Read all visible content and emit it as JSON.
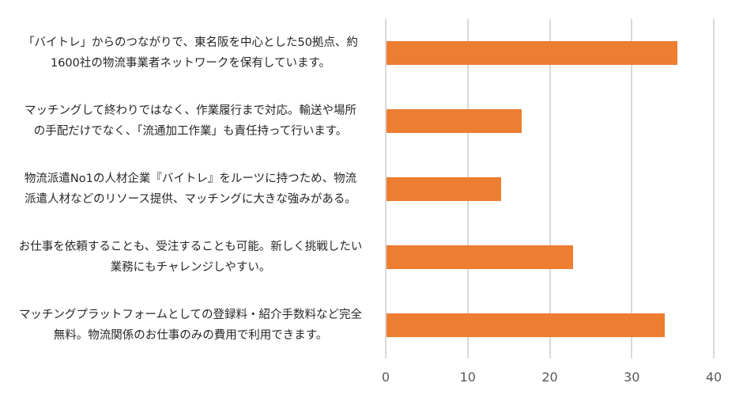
{
  "chart_data": {
    "type": "bar",
    "orientation": "horizontal",
    "title": "",
    "xlabel": "",
    "ylabel": "",
    "xlim": [
      0,
      40
    ],
    "xticks": [
      0,
      10,
      20,
      30,
      40
    ],
    "grid": true,
    "legend": null,
    "bar_color": "#ed7d31",
    "categories": [
      "「バイトレ」からのつながりで、東名阪を中心とした50拠点、約1600社の物流事業者ネットワークを保有しています。",
      "マッチングして終わりではなく、作業履行まで対応。輸送や場所の手配だけでなく、「流通加工作業」も責任持って行います。",
      "物流派遣No1の人材企業『バイトレ』をルーツに持つため、物流派遣人材などのリソース提供、マッチングに大きな強みがある。",
      "お仕事を依頼することも、受注することも可能。新しく挑戦したい業務にもチャレンジしやすい。",
      "マッチングプラットフォームとしての登録料・紹介手数料など完全無料。物流関係のお仕事のみの費用で利用できます。"
    ],
    "values": [
      35.6,
      16.6,
      14.1,
      22.8,
      34.0
    ]
  },
  "labels": [
    {
      "line1": "「バイトレ」からのつながりで、東名阪を中心とした50拠点、約",
      "line2": "1600社の物流事業者ネットワークを保有しています。"
    },
    {
      "line1": "マッチングして終わりではなく、作業履行まで対応。輸送や場所",
      "line2": "の手配だけでなく、「流通加工作業」も責任持って行います。"
    },
    {
      "line1": "物流派遣No1の人材企業『バイトレ』をルーツに持つため、物流",
      "line2": "派遣人材などのリソース提供、マッチングに大きな強みがある。"
    },
    {
      "line1": "お仕事を依頼することも、受注することも可能。新しく挑戦したい",
      "line2": "業務にもチャレンジしやすい。"
    },
    {
      "line1": "マッチングプラットフォームとしての登録料・紹介手数料など完全",
      "line2": "無料。物流関係のお仕事のみの費用で利用できます。"
    }
  ],
  "axis": {
    "ticks": [
      "0",
      "10",
      "20",
      "30",
      "40"
    ]
  }
}
